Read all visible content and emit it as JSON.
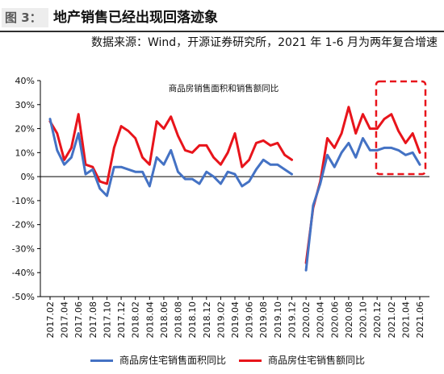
{
  "header": {
    "figure_label": "图 3：",
    "title": "地产销售已经出现回落迹象",
    "source": "数据来源：Wind，开源证券研究所，2021 年 1-6 月为两年复合增速"
  },
  "chart_data": {
    "type": "line",
    "title": "商品房销售面积和销售额同比",
    "xlabel": "",
    "ylabel": "",
    "ylim": [
      -50,
      40
    ],
    "y_ticks": [
      "40%",
      "30%",
      "20%",
      "10%",
      "0%",
      "-10%",
      "-20%",
      "-30%",
      "-40%",
      "-50%"
    ],
    "y_tick_values": [
      40,
      30,
      20,
      10,
      0,
      -10,
      -20,
      -30,
      -40,
      -50
    ],
    "x": [
      "2017.02",
      "2017.03",
      "2017.04",
      "2017.05",
      "2017.06",
      "2017.07",
      "2017.08",
      "2017.09",
      "2017.10",
      "2017.11",
      "2017.12",
      "2018.01",
      "2018.02",
      "2018.03",
      "2018.04",
      "2018.05",
      "2018.06",
      "2018.07",
      "2018.08",
      "2018.09",
      "2018.10",
      "2018.11",
      "2018.12",
      "2019.01",
      "2019.02",
      "2019.03",
      "2019.04",
      "2019.05",
      "2019.06",
      "2019.07",
      "2019.08",
      "2019.09",
      "2019.10",
      "2019.11",
      "2019.12",
      "2020.01",
      "2020.02",
      "2020.03",
      "2020.04",
      "2020.05",
      "2020.06",
      "2020.07",
      "2020.08",
      "2020.09",
      "2020.10",
      "2020.11",
      "2020.12",
      "2021.01",
      "2021.02",
      "2021.03",
      "2021.04",
      "2021.05",
      "2021.06"
    ],
    "x_tick_labels": [
      "2017.02",
      "2017.04",
      "2017.06",
      "2017.08",
      "2017.10",
      "2017.12",
      "2018.02",
      "2018.04",
      "2018.06",
      "2018.08",
      "2018.10",
      "2018.12",
      "2019.02",
      "2019.04",
      "2019.06",
      "2019.08",
      "2019.10",
      "2019.12",
      "2020.02",
      "2020.04",
      "2020.06",
      "2020.08",
      "2020.10",
      "2020.12",
      "2021.02",
      "2021.04",
      "2021.06"
    ],
    "series": [
      {
        "name": "商品房住宅销售面积同比",
        "color": "#4472c4",
        "values": [
          24,
          11,
          5,
          8,
          18,
          1,
          3,
          -5,
          -8,
          4,
          4,
          3,
          2,
          2,
          -4,
          8,
          5,
          11,
          2,
          -1,
          -1,
          -3,
          2,
          0,
          -3,
          2,
          1,
          -4,
          -2,
          3,
          7,
          5,
          5,
          3,
          1,
          null,
          -39,
          -12,
          -3,
          9,
          4,
          10,
          14,
          8,
          16,
          11,
          11,
          12,
          12,
          11,
          9,
          10,
          5
        ]
      },
      {
        "name": "商品房住宅销售额同比",
        "color": "#e8141b",
        "values": [
          23,
          18,
          7,
          12,
          26,
          5,
          4,
          -2,
          -3,
          12,
          21,
          19,
          16,
          8,
          5,
          23,
          20,
          25,
          17,
          11,
          10,
          13,
          13,
          8,
          5,
          10,
          18,
          4,
          7,
          14,
          15,
          13,
          14,
          9,
          7,
          null,
          -36,
          -13,
          -2,
          16,
          12,
          18,
          29,
          18,
          26,
          20,
          20,
          24,
          26,
          19,
          14,
          18,
          10
        ]
      }
    ],
    "highlight": {
      "from": "2021.01",
      "to": "2021.06",
      "style": "dashed-box",
      "color": "#e8141b"
    }
  }
}
